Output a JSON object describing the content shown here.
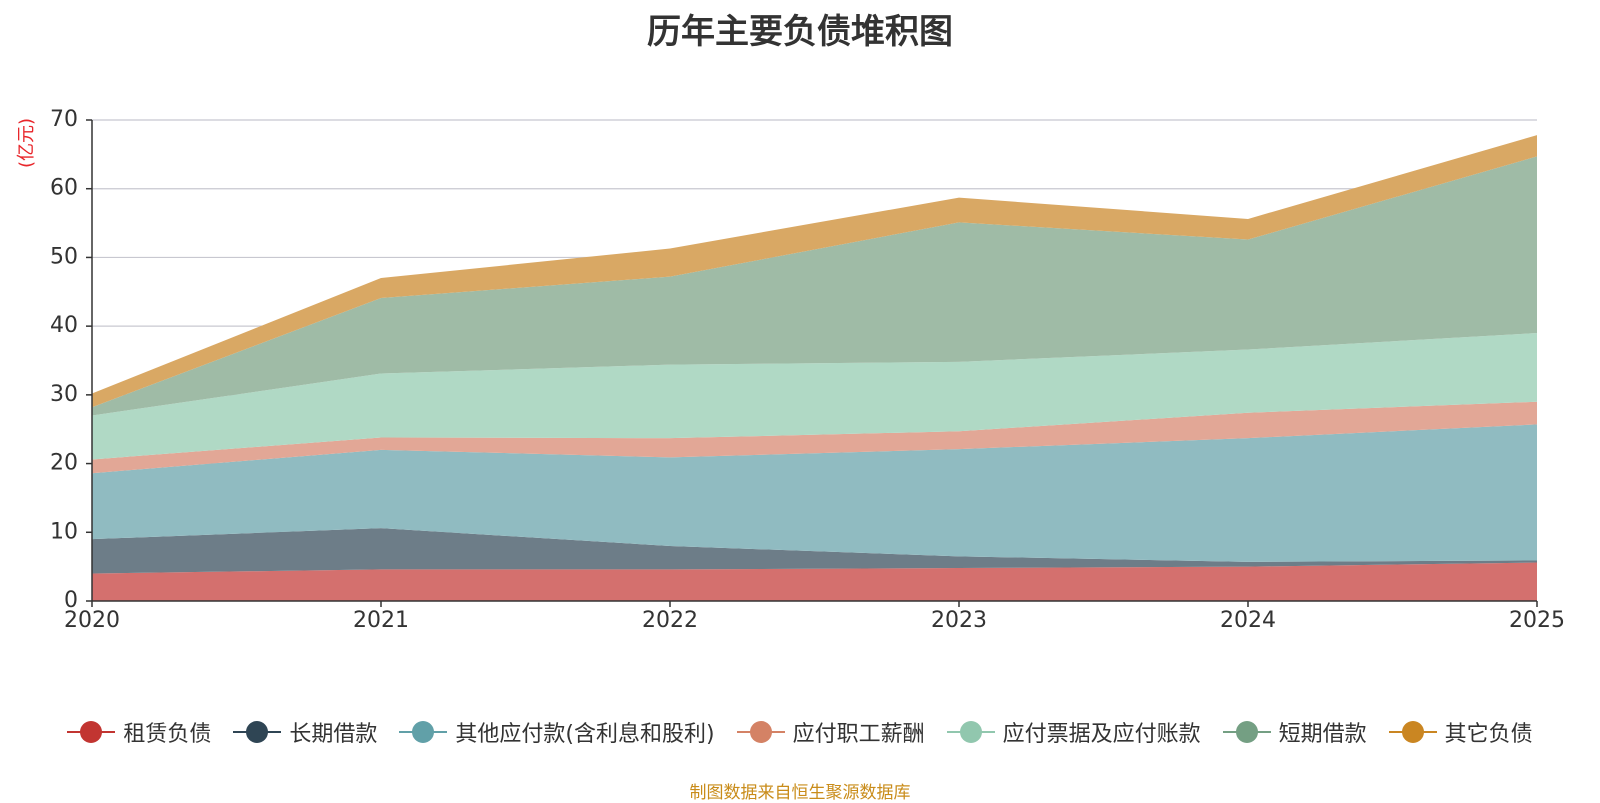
{
  "chart_data": {
    "type": "area",
    "stacked": true,
    "title": "历年主要负债堆积图",
    "unit": "(亿元)",
    "x": [
      "2020",
      "2021",
      "2022",
      "2023",
      "2024",
      "2025"
    ],
    "ylim": [
      0,
      70
    ],
    "yticks": [
      0,
      10,
      20,
      30,
      40,
      50,
      60,
      70
    ],
    "grid": true,
    "series": [
      {
        "name": "租赁负债",
        "color": "#c23531",
        "fill": "#d4706e",
        "values": [
          4.0,
          4.6,
          4.6,
          4.8,
          5.0,
          5.6
        ]
      },
      {
        "name": "长期借款",
        "color": "#2f4554",
        "fill": "#6d7d88",
        "values": [
          5.0,
          6.0,
          3.4,
          1.7,
          0.7,
          0.3
        ]
      },
      {
        "name": "其他应付款(含利息和股利)",
        "color": "#61a0a8",
        "fill": "#90bbc1",
        "values": [
          9.6,
          11.4,
          12.9,
          15.6,
          18.0,
          19.8
        ]
      },
      {
        "name": "应付职工薪酬",
        "color": "#d48265",
        "fill": "#e2a796",
        "values": [
          2.0,
          1.8,
          2.8,
          2.6,
          3.7,
          3.3
        ]
      },
      {
        "name": "应付票据及应付账款",
        "color": "#91c7ae",
        "fill": "#b0d9c5",
        "values": [
          6.4,
          9.3,
          10.7,
          10.1,
          9.2,
          10.0
        ]
      },
      {
        "name": "短期借款",
        "color": "#749f83",
        "fill": "#9fbba6",
        "values": [
          1.2,
          11.0,
          12.8,
          20.3,
          16.0,
          25.7
        ]
      },
      {
        "name": "其它负债",
        "color": "#ca8622",
        "fill": "#d9a864",
        "values": [
          2.0,
          2.9,
          4.1,
          3.6,
          3.0,
          3.1
        ]
      }
    ]
  },
  "footer": {
    "source": "制图数据来自恒生聚源数据库"
  }
}
